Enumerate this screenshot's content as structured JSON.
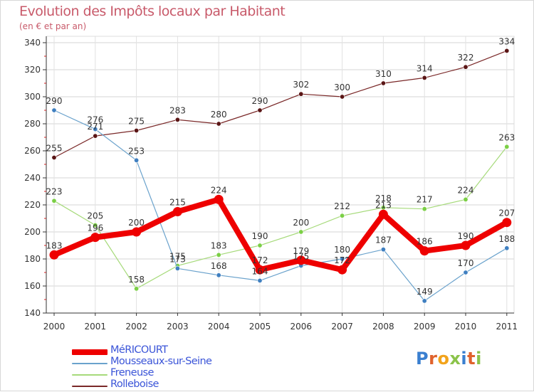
{
  "title": "Evolution des Impôts locaux par Habitant",
  "subtitle": "(en € et par an)",
  "logo": {
    "text": "Proxiti",
    "letters": [
      "P",
      "r",
      "o",
      "x",
      "i",
      "t",
      "i"
    ],
    "colors": [
      "#3a7fd0",
      "#e0622c",
      "#f2a31b",
      "#8bc34a",
      "#3a7fd0",
      "#e0622c",
      "#8bc34a"
    ]
  },
  "chart_data": {
    "type": "line",
    "title": "Evolution des Impôts locaux par Habitant",
    "subtitle": "(en € et par an)",
    "xlabel": "",
    "ylabel": "",
    "categories": [
      "2000",
      "2001",
      "2002",
      "2003",
      "2004",
      "2005",
      "2006",
      "2007",
      "2008",
      "2009",
      "2010",
      "2011"
    ],
    "ylim": [
      140,
      345
    ],
    "yticks": [
      140,
      160,
      180,
      200,
      220,
      240,
      260,
      280,
      300,
      320,
      340
    ],
    "grid": true,
    "legend_position": "bottom-left",
    "series": [
      {
        "name": "Rolleboise",
        "color": "#7a2828",
        "marker": "#5a1515",
        "width": 1.2,
        "values": [
          255,
          271,
          275,
          283,
          280,
          290,
          302,
          300,
          310,
          314,
          322,
          334
        ],
        "labels": [
          "255",
          "271",
          "275",
          "283",
          "280",
          "290",
          "302",
          "300",
          "310",
          "314",
          "322",
          "334"
        ]
      },
      {
        "name": "Freneuse",
        "color": "#a6da7a",
        "marker": "#7bcf45",
        "width": 1.2,
        "values": [
          223,
          205,
          158,
          175,
          183,
          190,
          200,
          212,
          218,
          217,
          224,
          263
        ],
        "labels": [
          "223",
          "205",
          "158",
          "175",
          "183",
          "190",
          "200",
          "212",
          "218",
          "217",
          "224",
          "263"
        ]
      },
      {
        "name": "Mousseaux-sur-Seine",
        "color": "#6aa2cc",
        "marker": "#3f7fc0",
        "width": 1.2,
        "values": [
          290,
          276,
          253,
          173,
          168,
          164,
          175,
          180,
          187,
          149,
          170,
          188
        ],
        "labels": [
          "290",
          "276",
          "253",
          "173",
          "168",
          "164",
          "175",
          "180",
          "187",
          "149",
          "170",
          "188"
        ]
      },
      {
        "name": "MéRICOURT",
        "color": "#ee0000",
        "marker": "#ee0000",
        "width": 8,
        "values": [
          183,
          196,
          200,
          215,
          224,
          172,
          179,
          172,
          213,
          186,
          190,
          207
        ],
        "labels": [
          "183",
          "196",
          "200",
          "215",
          "224",
          "172",
          "179",
          "172",
          "213",
          "186",
          "190",
          "207"
        ]
      }
    ],
    "legend": [
      {
        "name": "MéRICOURT",
        "color": "#ee0000",
        "textcolor": "#3b55d8",
        "thickness": 8
      },
      {
        "name": "Mousseaux-sur-Seine",
        "color": "#6aa2cc",
        "textcolor": "#3b55d8",
        "thickness": 2
      },
      {
        "name": "Freneuse",
        "color": "#a6da7a",
        "textcolor": "#3b55d8",
        "thickness": 2
      },
      {
        "name": "Rolleboise",
        "color": "#7a2828",
        "textcolor": "#3b55d8",
        "thickness": 2
      }
    ]
  }
}
